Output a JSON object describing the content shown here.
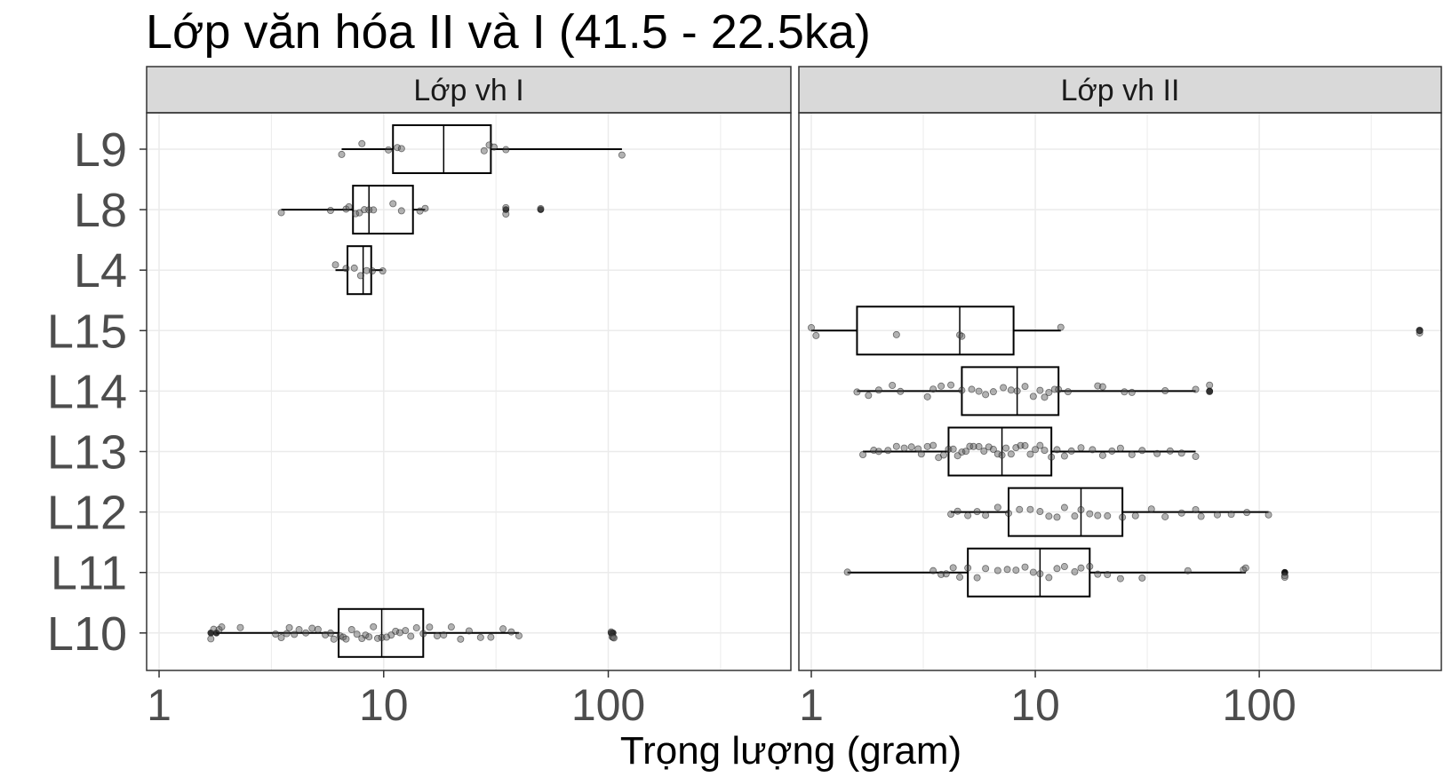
{
  "chart_data": {
    "type": "boxplot",
    "title": "Lớp văn hóa II và I (41.5 - 22.5ka)",
    "xlabel": "Trọng lượng (gram)",
    "ylabel": "",
    "x_scale": "log10",
    "xlim": [
      0.88,
      650
    ],
    "x_ticks": [
      1,
      10,
      100
    ],
    "x_tick_labels": [
      "1",
      "10",
      "100"
    ],
    "x_minor_ticks": [
      3.162,
      31.62,
      316.2
    ],
    "categories": [
      "L9",
      "L8",
      "L4",
      "L15",
      "L14",
      "L13",
      "L12",
      "L11",
      "L10"
    ],
    "grid": true,
    "colors": {
      "panel_border": "#333333",
      "strip_fill": "#d9d9d9",
      "grid": "#ebebeb",
      "point": "#000000"
    },
    "panels": [
      {
        "name": "Lớp vh I",
        "boxes": [
          {
            "category": "L9",
            "whisker_low": 6.5,
            "q1": 11.0,
            "median": 18.5,
            "q3": 30.0,
            "whisker_high": 115,
            "outliers": []
          },
          {
            "category": "L8",
            "whisker_low": 3.5,
            "q1": 7.3,
            "median": 8.6,
            "q3": 13.5,
            "whisker_high": 15.3,
            "outliers": [
              35,
              50
            ]
          },
          {
            "category": "L4",
            "whisker_low": 6.1,
            "q1": 6.9,
            "median": 8.1,
            "q3": 8.8,
            "whisker_high": 9.9,
            "outliers": []
          },
          {
            "category": "L10",
            "whisker_low": 1.8,
            "q1": 6.3,
            "median": 9.8,
            "q3": 15.0,
            "whisker_high": 40,
            "outliers": [
              1.7,
              1.8,
              103,
              105
            ]
          }
        ],
        "points": [
          {
            "category": "L9",
            "values": [
              6.5,
              8.0,
              10.5,
              11.5,
              12.0,
              28.0,
              29.5,
              31.0,
              35.0,
              115
            ]
          },
          {
            "category": "L8",
            "values": [
              3.5,
              5.8,
              6.8,
              7.0,
              7.5,
              7.8,
              8.2,
              8.6,
              9.0,
              11.0,
              12.0,
              14.5,
              15.3,
              35,
              35,
              50
            ]
          },
          {
            "category": "L4",
            "values": [
              6.1,
              6.8,
              7.4,
              7.9,
              8.4,
              8.9,
              9.9
            ]
          },
          {
            "category": "L10",
            "values": [
              1.7,
              1.75,
              1.85,
              1.9,
              2.3,
              3.3,
              3.5,
              3.7,
              3.8,
              4.0,
              4.2,
              4.5,
              4.8,
              5.1,
              5.5,
              5.8,
              6.0,
              6.4,
              6.6,
              6.8,
              7.2,
              7.6,
              8.0,
              8.3,
              8.6,
              9.0,
              9.4,
              9.8,
              10.3,
              10.8,
              11.3,
              11.8,
              12.5,
              13.2,
              14.0,
              15.0,
              16.0,
              17.3,
              18.5,
              20.0,
              22.0,
              24.0,
              27.0,
              30.0,
              34.0,
              37.0,
              40.0,
              103,
              104,
              105,
              106
            ]
          }
        ]
      },
      {
        "name": "Lớp vh II",
        "boxes": [
          {
            "category": "L15",
            "whisker_low": 1.0,
            "q1": 1.6,
            "median": 4.6,
            "q3": 8.0,
            "whisker_high": 13.0,
            "outliers": [
              520,
              520
            ]
          },
          {
            "category": "L14",
            "whisker_low": 1.6,
            "q1": 4.7,
            "median": 8.3,
            "q3": 12.7,
            "whisker_high": 52,
            "outliers": [
              60,
              60
            ]
          },
          {
            "category": "L13",
            "whisker_low": 1.7,
            "q1": 4.1,
            "median": 7.1,
            "q3": 11.8,
            "whisker_high": 52,
            "outliers": []
          },
          {
            "category": "L12",
            "whisker_low": 4.2,
            "q1": 7.6,
            "median": 16.0,
            "q3": 24.5,
            "whisker_high": 110,
            "outliers": []
          },
          {
            "category": "L11",
            "whisker_low": 1.45,
            "q1": 5.0,
            "median": 10.5,
            "q3": 17.5,
            "whisker_high": 87,
            "outliers": [
              130,
              130
            ]
          }
        ],
        "points": [
          {
            "category": "L15",
            "values": [
              1.0,
              1.05,
              2.4,
              4.6,
              4.7,
              13.0,
              520,
              520
            ]
          },
          {
            "category": "L14",
            "values": [
              1.6,
              1.8,
              2.0,
              2.3,
              2.5,
              3.3,
              3.5,
              3.8,
              4.2,
              4.7,
              5.2,
              5.6,
              6.0,
              6.5,
              7.2,
              7.8,
              8.3,
              9.0,
              9.8,
              10.5,
              11.0,
              11.5,
              12.2,
              12.7,
              14.0,
              19.0,
              20.0,
              25.0,
              27.0,
              38.0,
              52,
              60,
              60
            ]
          },
          {
            "category": "L13",
            "values": [
              1.7,
              1.9,
              2.0,
              2.2,
              2.4,
              2.6,
              2.8,
              3.0,
              3.1,
              3.3,
              3.5,
              3.7,
              3.9,
              4.1,
              4.3,
              4.5,
              4.7,
              4.9,
              5.1,
              5.3,
              5.6,
              5.9,
              6.2,
              6.5,
              6.8,
              7.1,
              7.4,
              7.8,
              8.2,
              8.6,
              9.0,
              9.5,
              10.0,
              10.5,
              11.0,
              11.8,
              12.5,
              13.5,
              14.5,
              16.0,
              18.0,
              20.0,
              22.0,
              24.0,
              27.0,
              30.0,
              35.0,
              40.0,
              45.0,
              52.0
            ]
          },
          {
            "category": "L12",
            "values": [
              4.2,
              4.5,
              5.0,
              5.5,
              6.0,
              6.8,
              7.6,
              8.5,
              9.5,
              10.5,
              11.5,
              12.5,
              13.5,
              15.0,
              16.0,
              17.5,
              19.0,
              21.0,
              24.5,
              28.0,
              33.0,
              38.0,
              45.0,
              52.0,
              55.0,
              65.0,
              75.0,
              88.0,
              110.0
            ]
          },
          {
            "category": "L11",
            "values": [
              1.45,
              3.5,
              3.8,
              4.0,
              4.3,
              4.6,
              5.0,
              5.5,
              6.0,
              6.8,
              7.5,
              8.2,
              9.0,
              9.8,
              10.5,
              11.5,
              12.5,
              13.5,
              15.0,
              16.0,
              17.5,
              19.0,
              21.0,
              24.0,
              30.0,
              48.0,
              85.0,
              87.0,
              130,
              130
            ]
          }
        ]
      }
    ]
  }
}
